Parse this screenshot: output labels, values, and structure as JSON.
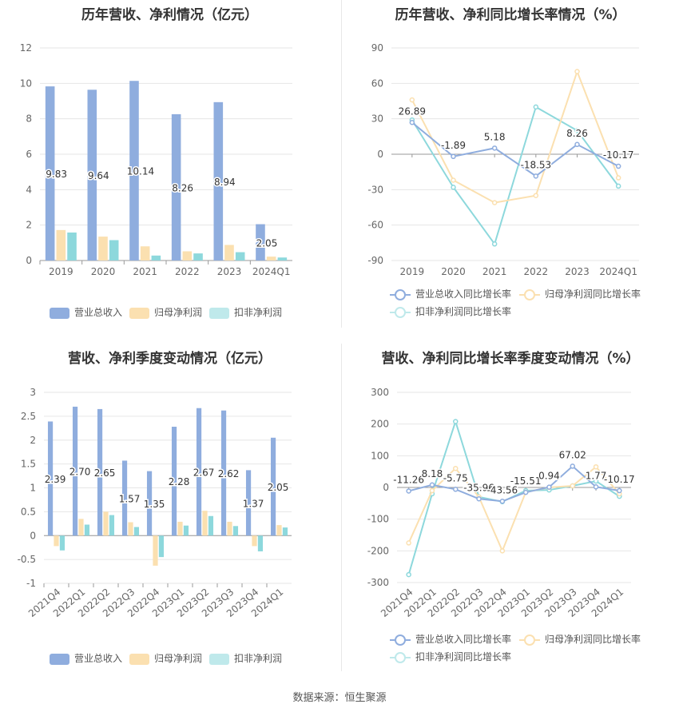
{
  "source": "数据来源：恒生聚源",
  "charts": [
    {
      "title": "历年营收、净利情况（亿元）",
      "legend": [
        "营业总收入",
        "归母净利润",
        "扣非净利润"
      ],
      "colors": [
        "#8fadde",
        "#fbe0b0",
        "#8dd8dc"
      ]
    },
    {
      "title": "历年营收、净利同比增长率情况（%）",
      "legend": [
        "营业总收入同比增长率",
        "归母净利润同比增长率",
        "扣非净利润同比增长率"
      ],
      "colors": [
        "#8fadde",
        "#fbe0b0",
        "#8dd8dc"
      ]
    },
    {
      "title": "营收、净利季度变动情况（亿元）",
      "legend": [
        "营业总收入",
        "归母净利润",
        "扣非净利润"
      ],
      "colors": [
        "#8fadde",
        "#fbe0b0",
        "#8dd8dc"
      ]
    },
    {
      "title": "营收、净利同比增长率季度变动情况（%）",
      "legend": [
        "营业总收入同比增长率",
        "归母净利润同比增长率",
        "扣非净利润同比增长率"
      ],
      "colors": [
        "#8fadde",
        "#fbe0b0",
        "#8dd8dc"
      ]
    }
  ],
  "chart_data": [
    {
      "type": "bar",
      "title": "历年营收、净利情况（亿元）",
      "categories": [
        "2019",
        "2020",
        "2021",
        "2022",
        "2023",
        "2024Q1"
      ],
      "ylim": [
        0,
        12
      ],
      "yticks": [
        0,
        2,
        4,
        6,
        8,
        10,
        12
      ],
      "series": [
        {
          "name": "营业总收入",
          "values": [
            9.83,
            9.64,
            10.14,
            8.26,
            8.94,
            2.05
          ],
          "labels": [
            "9.83",
            "9.64",
            "10.14",
            "8.26",
            "8.94",
            "2.05"
          ]
        },
        {
          "name": "归母净利润",
          "values": [
            1.72,
            1.35,
            0.8,
            0.52,
            0.88,
            0.22
          ]
        },
        {
          "name": "扣非净利润",
          "values": [
            1.58,
            1.15,
            0.28,
            0.4,
            0.47,
            0.17
          ]
        }
      ]
    },
    {
      "type": "line",
      "title": "历年营收、净利同比增长率情况（%）",
      "categories": [
        "2019",
        "2020",
        "2021",
        "2022",
        "2023",
        "2024Q1"
      ],
      "ylim": [
        -90,
        90
      ],
      "yticks": [
        -90,
        -60,
        -30,
        0,
        30,
        60,
        90
      ],
      "series": [
        {
          "name": "营业总收入同比增长率",
          "values": [
            26.89,
            -1.89,
            5.18,
            -18.53,
            8.26,
            -10.17
          ],
          "labels": [
            "26.89",
            "-1.89",
            "5.18",
            "-18.53",
            "8.26",
            "-10.17"
          ]
        },
        {
          "name": "归母净利润同比增长率",
          "values": [
            46,
            -22,
            -41,
            -35,
            70,
            -20
          ]
        },
        {
          "name": "扣非净利润同比增长率",
          "values": [
            29,
            -28,
            -76,
            40,
            20,
            -27
          ]
        }
      ]
    },
    {
      "type": "bar",
      "title": "营收、净利季度变动情况（亿元）",
      "categories": [
        "2021Q4",
        "2022Q1",
        "2022Q2",
        "2022Q3",
        "2022Q4",
        "2023Q1",
        "2023Q2",
        "2023Q3",
        "2023Q4",
        "2024Q1"
      ],
      "ylim": [
        -1,
        3
      ],
      "yticks": [
        -1,
        -0.5,
        0,
        0.5,
        1,
        1.5,
        2,
        2.5,
        3
      ],
      "series": [
        {
          "name": "营业总收入",
          "values": [
            2.39,
            2.7,
            2.65,
            1.57,
            1.35,
            2.28,
            2.67,
            2.62,
            1.37,
            2.05
          ],
          "labels": [
            "2.39",
            "2.70",
            "2.65",
            "1.57",
            "1.35",
            "2.28",
            "2.67",
            "2.62",
            "1.37",
            "2.05"
          ]
        },
        {
          "name": "归母净利润",
          "values": [
            -0.22,
            0.35,
            0.5,
            0.28,
            -0.63,
            0.29,
            0.52,
            0.29,
            -0.22,
            0.22
          ]
        },
        {
          "name": "扣非净利润",
          "values": [
            -0.31,
            0.23,
            0.43,
            0.18,
            -0.45,
            0.21,
            0.41,
            0.2,
            -0.33,
            0.17
          ]
        }
      ]
    },
    {
      "type": "line",
      "title": "营收、净利同比增长率季度变动情况（%）",
      "categories": [
        "2021Q4",
        "2022Q1",
        "2022Q2",
        "2022Q3",
        "2022Q4",
        "2023Q1",
        "2023Q2",
        "2023Q3",
        "2023Q4",
        "2024Q1"
      ],
      "ylim": [
        -300,
        300
      ],
      "yticks": [
        -300,
        -200,
        -100,
        0,
        100,
        200,
        300
      ],
      "series": [
        {
          "name": "营业总收入同比增长率",
          "values": [
            -11.26,
            8.18,
            -5.75,
            -35.96,
            -43.56,
            -15.51,
            0.94,
            67.02,
            1.77,
            -10.17
          ],
          "labels": [
            "-11.26",
            "8.18",
            "-5.75",
            "-35.96",
            "-43.56",
            "-15.51",
            "0.94",
            "67.02",
            "1.77",
            "-10.17"
          ]
        },
        {
          "name": "归母净利润同比增长率",
          "values": [
            -175,
            -10,
            60,
            -30,
            -200,
            -15,
            0,
            5,
            65,
            -20
          ]
        },
        {
          "name": "扣非净利润同比增长率",
          "values": [
            -275,
            -20,
            208,
            -30,
            -45,
            -10,
            -8,
            5,
            20,
            -28
          ]
        }
      ]
    }
  ]
}
